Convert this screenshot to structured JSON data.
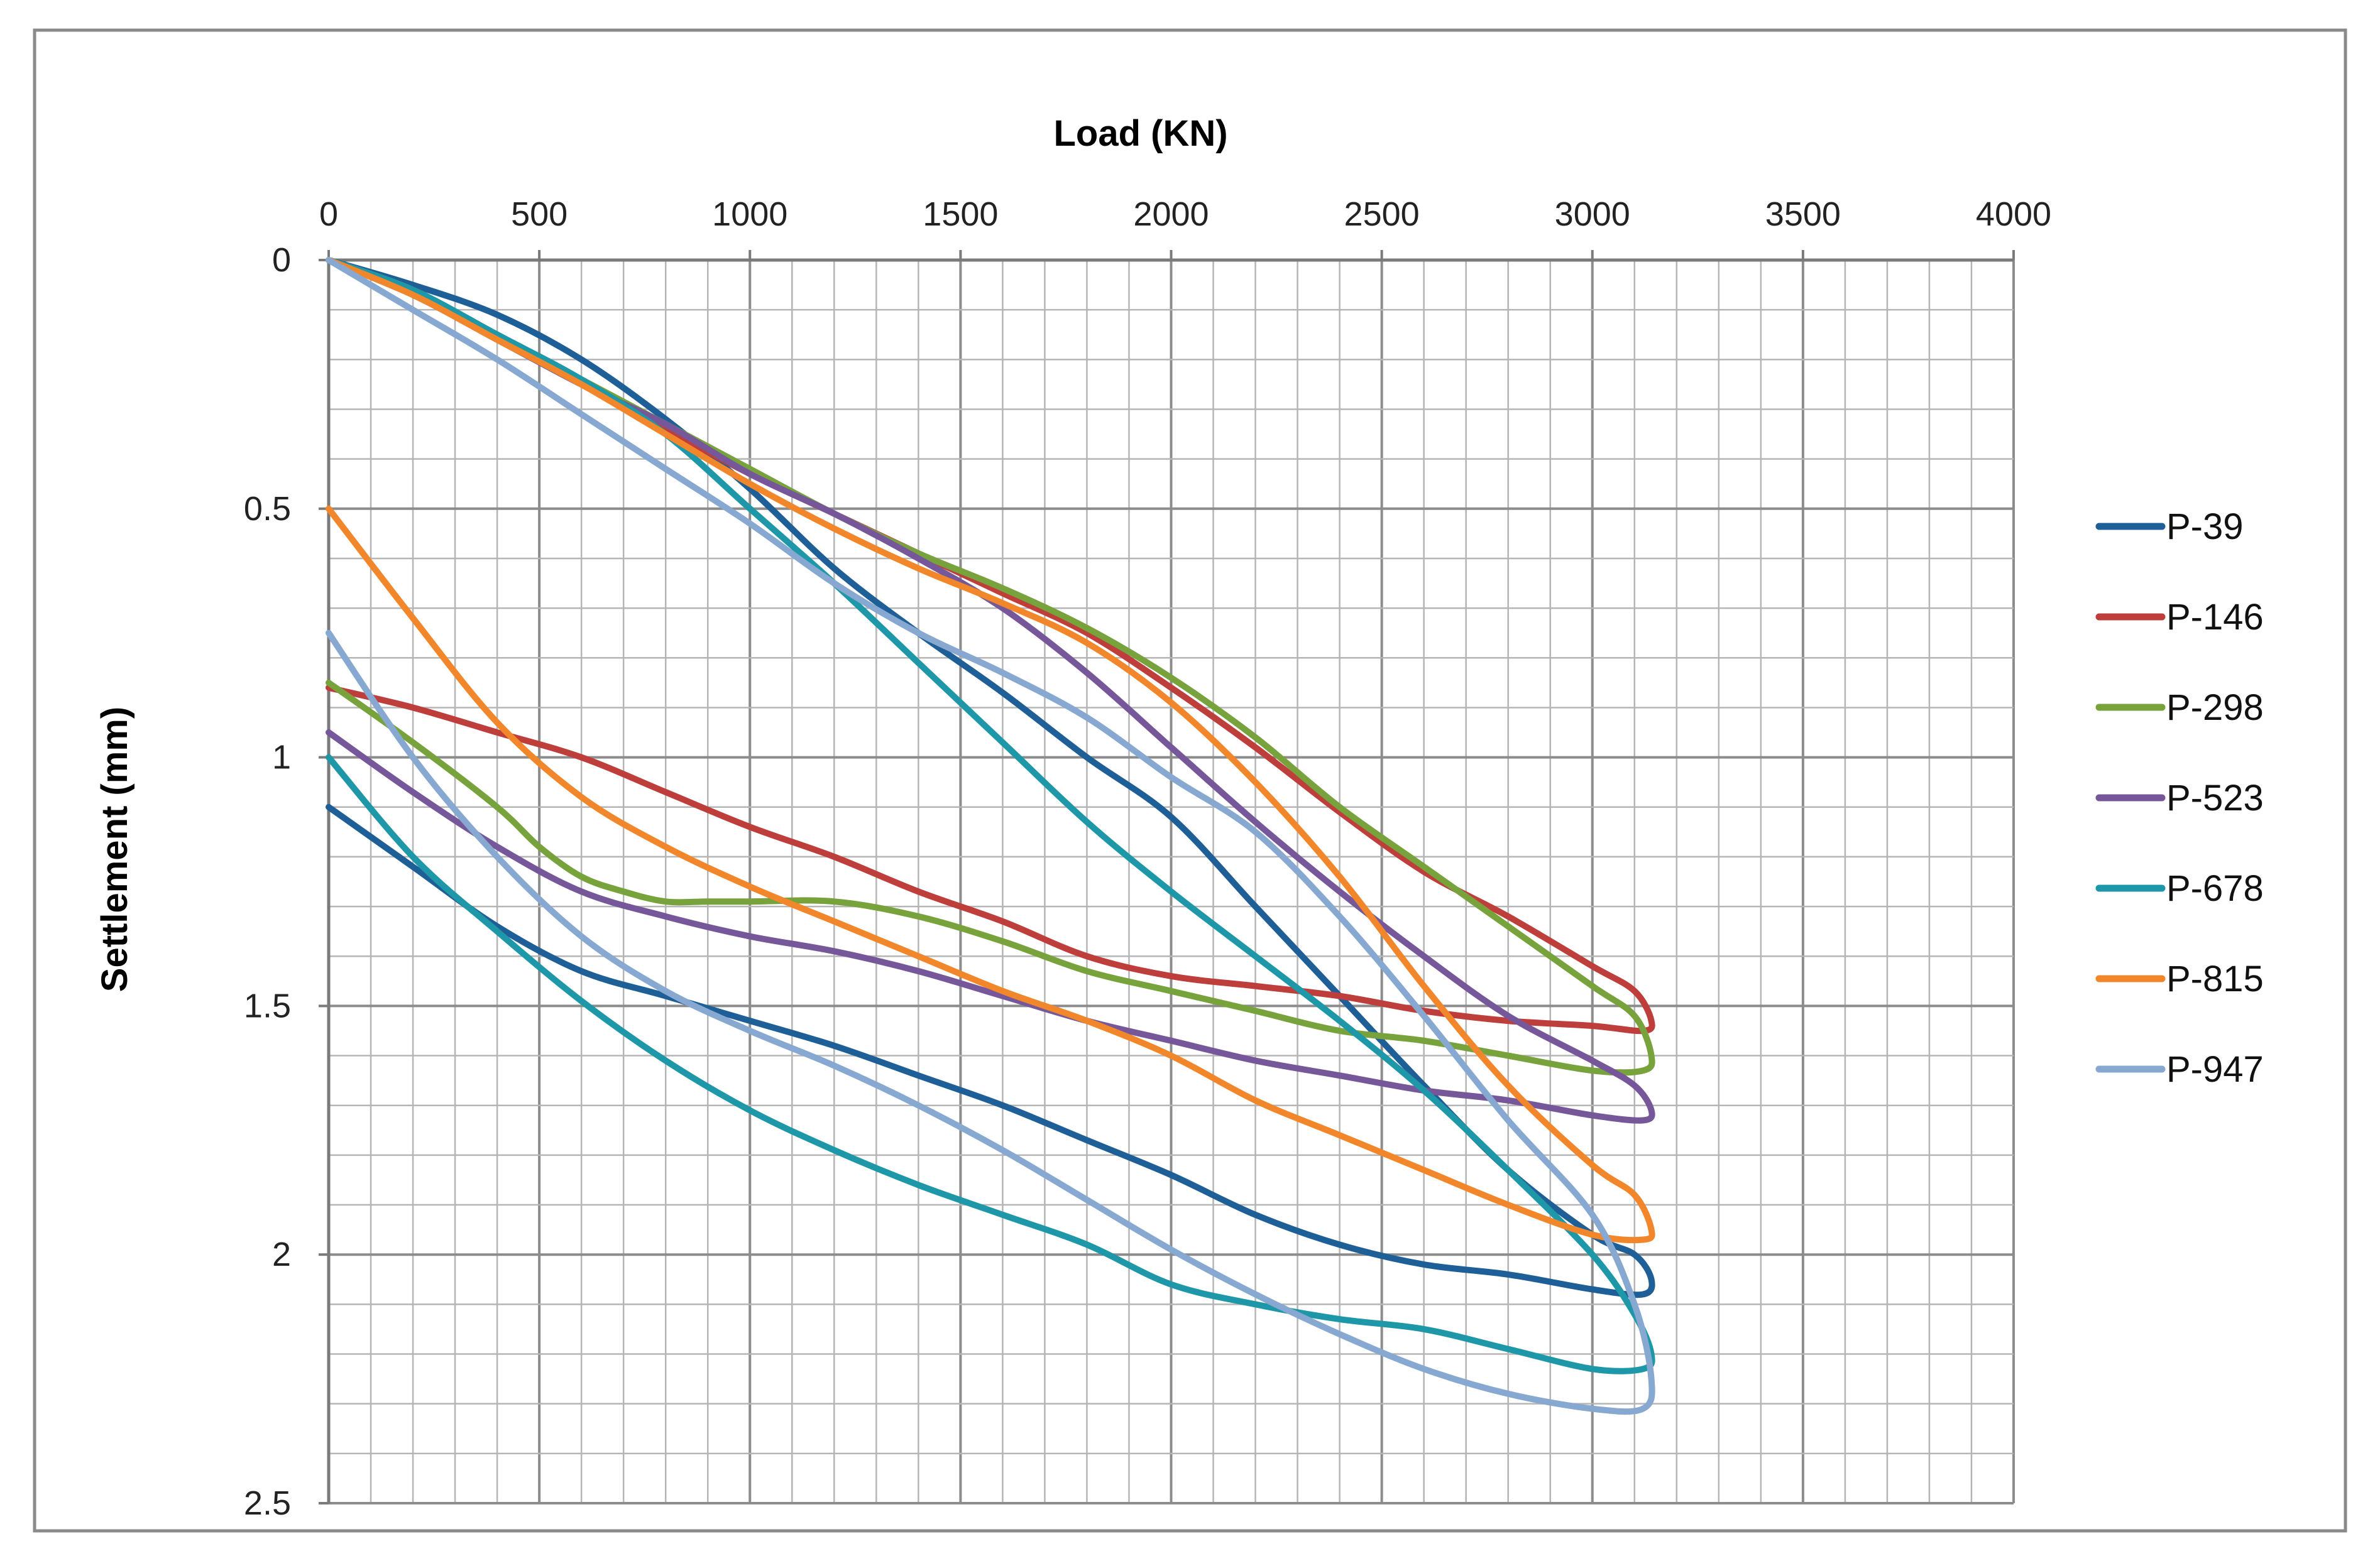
{
  "chart_data": {
    "type": "line",
    "title": "",
    "xlabel": "Load (KN)",
    "ylabel": "Settlement (mm)",
    "x_axis_position": "top",
    "y_axis_inverted": true,
    "xlim": [
      0,
      4000
    ],
    "ylim": [
      0,
      2.5
    ],
    "x_ticks": [
      "0",
      "500",
      "1000",
      "1500",
      "2000",
      "2500",
      "3000",
      "3500",
      "4000"
    ],
    "y_ticks": [
      "0",
      "0.5",
      "1",
      "1.5",
      "2",
      "2.5"
    ],
    "x_minor_step": 100,
    "y_minor_step": 0.1,
    "grid": true,
    "legend_position": "right",
    "series": [
      {
        "name": "P-39",
        "color": "#1F5F97",
        "x": [
          0,
          200,
          400,
          600,
          800,
          1000,
          1200,
          1400,
          1600,
          1800,
          2000,
          2200,
          2400,
          2600,
          2800,
          3000,
          3100,
          3140,
          3120,
          3000,
          2800,
          2600,
          2400,
          2200,
          2000,
          1800,
          1600,
          1400,
          1200,
          1000,
          800,
          600,
          400,
          200,
          0
        ],
        "y": [
          0,
          0.05,
          0.11,
          0.2,
          0.32,
          0.46,
          0.62,
          0.75,
          0.87,
          1.0,
          1.12,
          1.3,
          1.48,
          1.66,
          1.83,
          1.96,
          2.0,
          2.05,
          2.08,
          2.07,
          2.04,
          2.02,
          1.98,
          1.92,
          1.84,
          1.77,
          1.7,
          1.64,
          1.58,
          1.53,
          1.48,
          1.43,
          1.34,
          1.22,
          1.1
        ]
      },
      {
        "name": "P-146",
        "color": "#BE3E3B",
        "x": [
          0,
          200,
          400,
          600,
          800,
          1000,
          1200,
          1400,
          1600,
          1800,
          2000,
          2200,
          2400,
          2600,
          2800,
          3000,
          3100,
          3140,
          3120,
          3000,
          2800,
          2600,
          2400,
          2200,
          2000,
          1800,
          1600,
          1400,
          1200,
          1000,
          800,
          600,
          400,
          200,
          0
        ],
        "y": [
          0,
          0.07,
          0.16,
          0.25,
          0.34,
          0.43,
          0.51,
          0.59,
          0.67,
          0.75,
          0.86,
          0.98,
          1.11,
          1.23,
          1.32,
          1.42,
          1.47,
          1.53,
          1.55,
          1.54,
          1.53,
          1.51,
          1.48,
          1.46,
          1.44,
          1.4,
          1.33,
          1.27,
          1.2,
          1.14,
          1.07,
          1.0,
          0.95,
          0.9,
          0.86
        ]
      },
      {
        "name": "P-298",
        "color": "#77A23C",
        "x": [
          0,
          200,
          400,
          600,
          800,
          1000,
          1200,
          1400,
          1600,
          1800,
          2000,
          2200,
          2400,
          2600,
          2800,
          3000,
          3100,
          3140,
          3120,
          3000,
          2800,
          2600,
          2400,
          2200,
          2000,
          1800,
          1600,
          1400,
          1200,
          1000,
          900,
          800,
          700,
          600,
          500,
          400,
          200,
          0
        ],
        "y": [
          0,
          0.06,
          0.15,
          0.24,
          0.33,
          0.42,
          0.51,
          0.59,
          0.66,
          0.74,
          0.84,
          0.96,
          1.1,
          1.22,
          1.34,
          1.46,
          1.52,
          1.6,
          1.63,
          1.63,
          1.6,
          1.57,
          1.55,
          1.51,
          1.47,
          1.43,
          1.37,
          1.32,
          1.29,
          1.29,
          1.29,
          1.29,
          1.27,
          1.24,
          1.18,
          1.1,
          0.97,
          0.85
        ]
      },
      {
        "name": "P-523",
        "color": "#76589A",
        "x": [
          0,
          200,
          400,
          600,
          800,
          1000,
          1200,
          1400,
          1600,
          1800,
          2000,
          2200,
          2400,
          2600,
          2800,
          3000,
          3100,
          3140,
          3120,
          3000,
          2800,
          2600,
          2400,
          2200,
          2000,
          1800,
          1600,
          1400,
          1200,
          1000,
          800,
          600,
          400,
          200,
          0
        ],
        "y": [
          0,
          0.07,
          0.16,
          0.25,
          0.33,
          0.43,
          0.51,
          0.6,
          0.7,
          0.83,
          0.98,
          1.13,
          1.27,
          1.4,
          1.52,
          1.61,
          1.66,
          1.71,
          1.73,
          1.72,
          1.69,
          1.67,
          1.64,
          1.61,
          1.57,
          1.53,
          1.48,
          1.43,
          1.39,
          1.36,
          1.32,
          1.27,
          1.18,
          1.07,
          0.95
        ]
      },
      {
        "name": "P-678",
        "color": "#1E97A8",
        "x": [
          0,
          200,
          400,
          600,
          800,
          1000,
          1200,
          1400,
          1600,
          1800,
          2000,
          2200,
          2400,
          2600,
          2800,
          3000,
          3100,
          3140,
          3120,
          3000,
          2800,
          2600,
          2400,
          2200,
          2000,
          1800,
          1600,
          1400,
          1200,
          1000,
          800,
          600,
          400,
          200,
          0
        ],
        "y": [
          0,
          0.06,
          0.15,
          0.24,
          0.35,
          0.5,
          0.65,
          0.81,
          0.97,
          1.13,
          1.27,
          1.4,
          1.53,
          1.67,
          1.83,
          2.0,
          2.12,
          2.2,
          2.23,
          2.23,
          2.19,
          2.15,
          2.13,
          2.1,
          2.06,
          1.98,
          1.92,
          1.86,
          1.79,
          1.71,
          1.61,
          1.49,
          1.35,
          1.2,
          1.0
        ]
      },
      {
        "name": "P-815",
        "color": "#F2862B",
        "x": [
          0,
          200,
          400,
          600,
          800,
          1000,
          1200,
          1400,
          1600,
          1800,
          2000,
          2200,
          2400,
          2600,
          2800,
          3000,
          3100,
          3140,
          3120,
          3000,
          2800,
          2600,
          2400,
          2200,
          2000,
          1800,
          1600,
          1400,
          1200,
          1000,
          800,
          600,
          400,
          200,
          0
        ],
        "y": [
          0,
          0.07,
          0.16,
          0.25,
          0.35,
          0.45,
          0.54,
          0.62,
          0.69,
          0.77,
          0.89,
          1.05,
          1.24,
          1.46,
          1.66,
          1.82,
          1.88,
          1.95,
          1.97,
          1.96,
          1.9,
          1.83,
          1.76,
          1.69,
          1.6,
          1.53,
          1.47,
          1.4,
          1.33,
          1.26,
          1.18,
          1.08,
          0.93,
          0.72,
          0.5
        ]
      },
      {
        "name": "P-947",
        "color": "#87A8D0",
        "x": [
          0,
          200,
          400,
          600,
          800,
          1000,
          1200,
          1400,
          1600,
          1800,
          2000,
          2200,
          2400,
          2600,
          2800,
          3000,
          3100,
          3140,
          3120,
          3000,
          2800,
          2600,
          2400,
          2200,
          2000,
          1800,
          1600,
          1400,
          1200,
          1000,
          800,
          600,
          400,
          200,
          0
        ],
        "y": [
          0,
          0.1,
          0.2,
          0.31,
          0.42,
          0.53,
          0.65,
          0.75,
          0.83,
          0.92,
          1.04,
          1.15,
          1.32,
          1.52,
          1.73,
          1.92,
          2.1,
          2.25,
          2.31,
          2.31,
          2.28,
          2.23,
          2.16,
          2.08,
          1.99,
          1.89,
          1.79,
          1.7,
          1.62,
          1.55,
          1.47,
          1.36,
          1.2,
          1.0,
          0.75
        ]
      }
    ]
  }
}
